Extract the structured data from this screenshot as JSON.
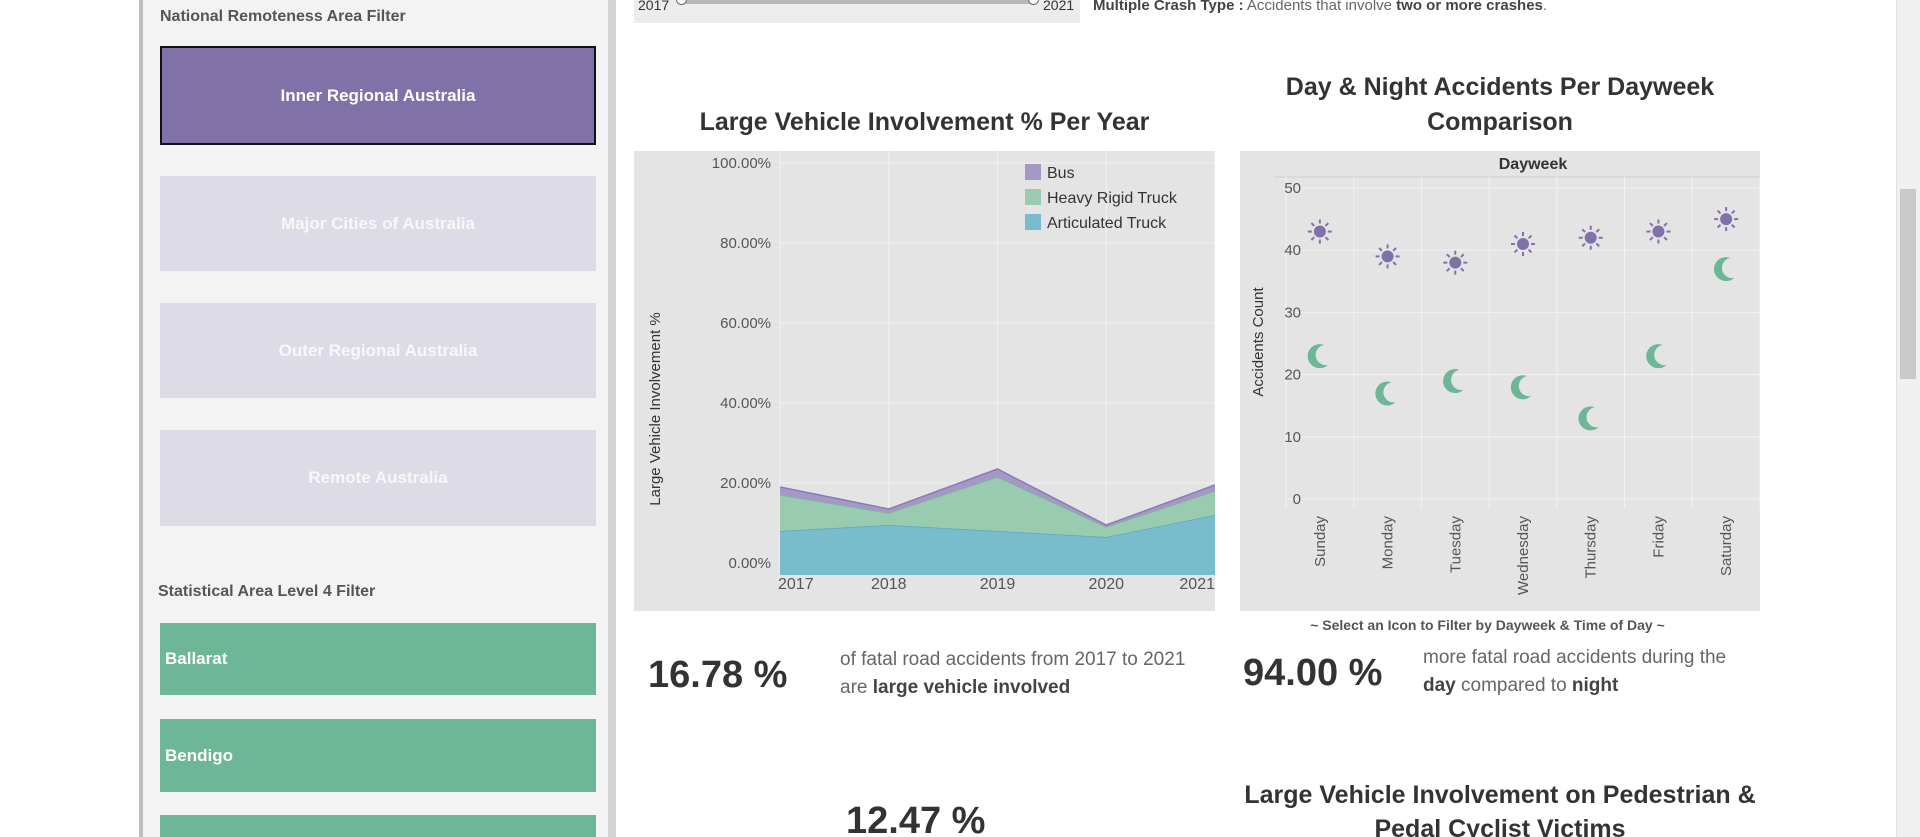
{
  "slider": {
    "start": "2017",
    "end": "2021"
  },
  "crash_note": {
    "label": "Multiple Crash Type :",
    "text": " Accidents that involve ",
    "bold": "two or more crashes",
    "end": "."
  },
  "sidebar": {
    "remoteness_title": "National Remoteness Area Filter",
    "remoteness_items": [
      {
        "label": "Inner Regional Australia",
        "selected": true
      },
      {
        "label": "Major Cities of Australia",
        "selected": false
      },
      {
        "label": "Outer Regional Australia",
        "selected": false
      },
      {
        "label": "Remote Australia",
        "selected": false
      }
    ],
    "sa4_title": "Statistical Area Level 4 Filter",
    "sa4_items": [
      "Ballarat",
      "Bendigo",
      ""
    ]
  },
  "colors": {
    "bus": "#a597c6",
    "heavy_rigid": "#99cbb0",
    "articulated": "#79bccb",
    "day": "#8072a8",
    "night": "#6db697"
  },
  "area_chart": {
    "title": "Large Vehicle Involvement % Per Year",
    "ylabel": "Large Vehicle Involvement %",
    "yticks": [
      "100.00%",
      "80.00%",
      "60.00%",
      "40.00%",
      "20.00%",
      "0.00%"
    ],
    "legend": [
      "Bus",
      "Heavy Rigid Truck",
      "Articulated Truck"
    ]
  },
  "scatter_chart": {
    "title_line1": "Day & Night Accidents Per Dayweek",
    "title_line2": "Comparison",
    "header": "Dayweek",
    "ylabel": "Accidents Count",
    "yticks": [
      "50",
      "40",
      "30",
      "20",
      "10",
      "0"
    ]
  },
  "chart_data": [
    {
      "type": "area",
      "title": "Large Vehicle Involvement % Per Year",
      "ylabel": "Large Vehicle Involvement %",
      "x": [
        "2017",
        "2018",
        "2019",
        "2020",
        "2021"
      ],
      "ylim": [
        0,
        100
      ],
      "stacked": true,
      "series": [
        {
          "name": "Articulated Truck",
          "values": [
            8.0,
            9.5,
            8.0,
            6.5,
            12.0
          ]
        },
        {
          "name": "Heavy Rigid Truck",
          "values": [
            9.0,
            3.0,
            13.5,
            2.5,
            6.0
          ]
        },
        {
          "name": "Bus",
          "values": [
            2.0,
            1.0,
            2.0,
            0.5,
            1.5
          ]
        }
      ],
      "legend_position": "top-right"
    },
    {
      "type": "scatter",
      "title": "Day & Night Accidents Per Dayweek Comparison",
      "xlabel": "Dayweek",
      "ylabel": "Accidents Count",
      "categories": [
        "Sunday",
        "Monday",
        "Tuesday",
        "Wednesday",
        "Thursday",
        "Friday",
        "Saturday"
      ],
      "ylim": [
        0,
        50
      ],
      "series": [
        {
          "icon": "sun",
          "values": [
            43,
            39,
            38,
            41,
            42,
            43,
            45
          ]
        },
        {
          "icon": "moon",
          "values": [
            23,
            17,
            19,
            18,
            13,
            23,
            37
          ]
        }
      ]
    }
  ],
  "hint": "~ Select an Icon to Filter by Dayweek & Time of Day ~",
  "kpis": [
    {
      "value": "16.78 %",
      "text": "of fatal road accidents from 2017 to 2021 are ",
      "bold": "large vehicle involved"
    },
    {
      "value": "94.00 %",
      "text_a": "more fatal road accidents during the ",
      "bold_a": "day",
      "text_b": " compared to ",
      "bold_b": "night"
    },
    {
      "value": "12.47 %"
    }
  ],
  "bottom_title": {
    "line1": "Large Vehicle Involvement on Pedestrian &",
    "line2": "Pedal Cyclist Victims"
  }
}
